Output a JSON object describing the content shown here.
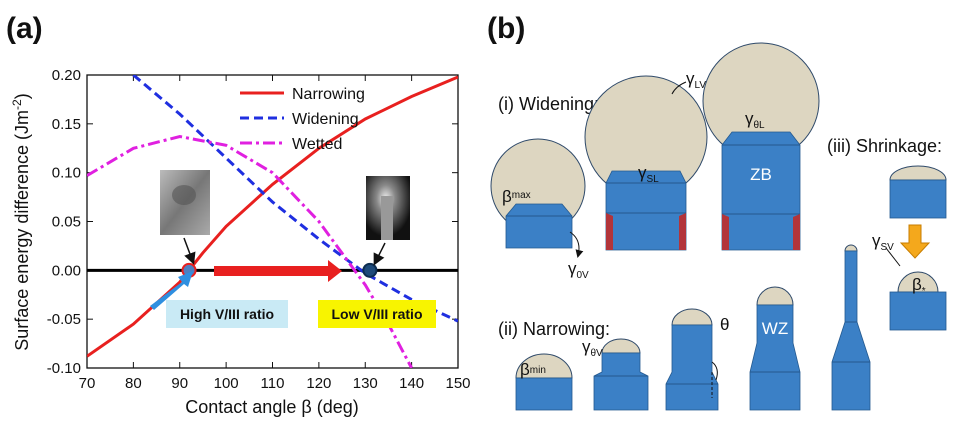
{
  "chart_data": {
    "type": "line",
    "panel_label": "(a)",
    "y_label": {
      "text": "Surface energy difference (Jm",
      "sup": "-2",
      "close": ")"
    },
    "x_label": "Contact angle β (deg)",
    "xlim": [
      70,
      150
    ],
    "xticks": [
      70,
      80,
      90,
      100,
      110,
      120,
      130,
      140,
      150
    ],
    "ylim": [
      -0.1,
      0.2
    ],
    "yticks": [
      {
        "value": -0.1,
        "label": "-0.10"
      },
      -0.05,
      {
        "value": 0,
        "label": "0.00"
      },
      0.05,
      {
        "value": 0.1,
        "label": "0.10"
      },
      0.15,
      {
        "value": 0.2,
        "label": "0.20"
      }
    ],
    "series": [
      {
        "name": "Narrowing",
        "color": "#e8201f",
        "style": "solid",
        "x": [
          70,
          80,
          90,
          92,
          95,
          100,
          110,
          120,
          130,
          140,
          150
        ],
        "values": [
          -0.088,
          -0.055,
          -0.012,
          0,
          0.018,
          0.045,
          0.088,
          0.125,
          0.155,
          0.178,
          0.198
        ]
      },
      {
        "name": "Widening",
        "color": "#1f2fe0",
        "style": "dashed",
        "x": [
          80,
          90,
          100,
          110,
          120,
          130,
          140,
          150
        ],
        "values": [
          0.2,
          0.16,
          0.115,
          0.07,
          0.032,
          -0.003,
          -0.03,
          -0.052
        ]
      },
      {
        "name": "Wetted",
        "color": "#e020e0",
        "style": "dashdot",
        "x": [
          70,
          80,
          90,
          100,
          110,
          120,
          130,
          135,
          140
        ],
        "values": [
          0.097,
          0.125,
          0.137,
          0.128,
          0.1,
          0.05,
          -0.015,
          -0.055,
          -0.1
        ]
      }
    ],
    "markers": {
      "x": [
        92,
        131
      ],
      "values": [
        0,
        0
      ]
    },
    "annotations": [
      "High V/III ratio",
      "Low V/III ratio"
    ],
    "legend": "upper right"
  },
  "diagram": {
    "panel_label": "(b)",
    "widening": {
      "title": "(i) Widening:",
      "gamma_lv": {
        "symbol": "γ",
        "sub": "LV"
      },
      "gamma_thetal": {
        "symbol": "γ",
        "sub": "θL"
      },
      "gamma_sl": {
        "symbol": "γ",
        "sub": "SL"
      },
      "beta_max": {
        "symbol": "β",
        "sub": "max"
      },
      "gamma_0v": {
        "symbol": "γ",
        "sub": "0V"
      },
      "zb": "ZB"
    },
    "shrinkage": {
      "title": "(iii) Shrinkage:",
      "gamma_sv": {
        "symbol": "γ",
        "sub": "SV"
      },
      "beta_star": {
        "symbol": "β",
        "sub": "*"
      }
    },
    "narrowing": {
      "title": "(ii) Narrowing:",
      "beta_min": {
        "symbol": "β",
        "sub": "min"
      },
      "gamma_thetav": {
        "symbol": "γ",
        "sub": "θV"
      },
      "theta": "θ",
      "wz": "WZ"
    }
  }
}
